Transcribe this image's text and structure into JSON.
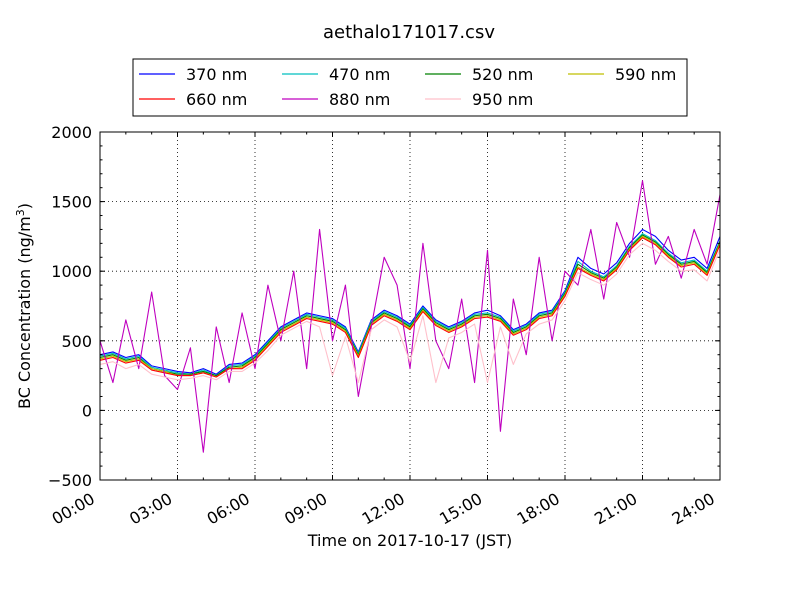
{
  "chart_data": {
    "type": "line",
    "title": "aethalo171017.csv",
    "xlabel": "Time on 2017-10-17 (JST)",
    "ylabel_main": "BC Concentration (ng/m",
    "ylabel_sup": "3",
    "ylabel_end": ")",
    "xlim": [
      "00:00",
      "24:00"
    ],
    "ylim": [
      -500,
      2000
    ],
    "grid": true,
    "legend_position": "top",
    "x_ticks": [
      "00:00",
      "03:00",
      "06:00",
      "09:00",
      "12:00",
      "15:00",
      "18:00",
      "21:00",
      "24:00"
    ],
    "y_ticks": [
      "2000",
      "1500",
      "1000",
      "500",
      "0",
      "−500"
    ],
    "x": [
      "00:00",
      "00:30",
      "01:00",
      "01:30",
      "02:00",
      "02:30",
      "03:00",
      "03:30",
      "04:00",
      "04:30",
      "05:00",
      "05:30",
      "06:00",
      "06:30",
      "07:00",
      "07:30",
      "08:00",
      "08:30",
      "09:00",
      "09:30",
      "10:00",
      "10:30",
      "11:00",
      "11:30",
      "12:00",
      "12:30",
      "13:00",
      "13:30",
      "14:00",
      "14:30",
      "15:00",
      "15:30",
      "16:00",
      "16:30",
      "17:00",
      "17:30",
      "18:00",
      "18:30",
      "19:00",
      "19:30",
      "20:00",
      "20:30",
      "21:00",
      "21:30",
      "22:00",
      "22:30",
      "23:00",
      "23:30",
      "24:00"
    ],
    "series": [
      {
        "name": "370 nm",
        "color": "#0000ff",
        "values": [
          400,
          420,
          380,
          400,
          320,
          300,
          280,
          270,
          300,
          260,
          330,
          340,
          400,
          500,
          600,
          650,
          700,
          680,
          660,
          600,
          420,
          650,
          720,
          680,
          620,
          750,
          650,
          600,
          640,
          700,
          720,
          680,
          580,
          620,
          700,
          720,
          860,
          1100,
          1020,
          980,
          1060,
          1200,
          1300,
          1250,
          1150,
          1080,
          1100,
          1020,
          1250
        ]
      },
      {
        "name": "470 nm",
        "color": "#00bfbf",
        "values": [
          390,
          410,
          370,
          390,
          310,
          290,
          270,
          260,
          290,
          250,
          320,
          330,
          390,
          490,
          590,
          640,
          690,
          670,
          650,
          590,
          410,
          640,
          710,
          670,
          610,
          740,
          640,
          590,
          630,
          690,
          700,
          670,
          570,
          610,
          690,
          710,
          850,
          1070,
          1000,
          960,
          1040,
          1180,
          1270,
          1220,
          1130,
          1060,
          1080,
          1000,
          1220
        ]
      },
      {
        "name": "520 nm",
        "color": "#008000",
        "values": [
          380,
          400,
          360,
          380,
          300,
          280,
          260,
          260,
          280,
          250,
          310,
          320,
          380,
          480,
          580,
          630,
          680,
          660,
          640,
          580,
          400,
          630,
          700,
          660,
          600,
          730,
          630,
          580,
          620,
          680,
          690,
          660,
          560,
          600,
          680,
          700,
          840,
          1050,
          990,
          950,
          1030,
          1170,
          1260,
          1210,
          1120,
          1050,
          1070,
          990,
          1210
        ]
      },
      {
        "name": "590 nm",
        "color": "#bfbf00",
        "values": [
          370,
          390,
          350,
          370,
          300,
          280,
          250,
          250,
          270,
          240,
          300,
          310,
          370,
          470,
          570,
          620,
          670,
          650,
          630,
          570,
          390,
          620,
          690,
          650,
          590,
          720,
          620,
          570,
          610,
          670,
          680,
          650,
          550,
          590,
          670,
          690,
          830,
          1030,
          980,
          940,
          1020,
          1160,
          1250,
          1200,
          1110,
          1040,
          1060,
          980,
          1200
        ]
      },
      {
        "name": "660 nm",
        "color": "#ff0000",
        "values": [
          360,
          380,
          340,
          360,
          290,
          270,
          250,
          250,
          270,
          240,
          300,
          300,
          360,
          460,
          560,
          610,
          660,
          640,
          620,
          560,
          380,
          610,
          680,
          640,
          580,
          710,
          610,
          560,
          600,
          660,
          670,
          640,
          540,
          580,
          660,
          680,
          820,
          1020,
          970,
          930,
          1010,
          1150,
          1240,
          1190,
          1100,
          1030,
          1050,
          970,
          1190
        ]
      },
      {
        "name": "880 nm",
        "color": "#bf00bf",
        "values": [
          500,
          200,
          650,
          300,
          850,
          250,
          150,
          450,
          -300,
          600,
          200,
          700,
          300,
          900,
          500,
          1000,
          300,
          1300,
          500,
          900,
          100,
          600,
          1100,
          900,
          300,
          1200,
          500,
          300,
          800,
          200,
          1150,
          -150,
          800,
          400,
          1100,
          500,
          1000,
          900,
          1300,
          800,
          1350,
          1100,
          1650,
          1050,
          1250,
          950,
          1300,
          1050,
          1550
        ]
      },
      {
        "name": "950 nm",
        "color": "#ffc0cb",
        "values": [
          330,
          350,
          300,
          330,
          260,
          240,
          220,
          230,
          250,
          220,
          280,
          280,
          340,
          430,
          540,
          590,
          640,
          600,
          250,
          530,
          200,
          580,
          650,
          600,
          350,
          680,
          200,
          520,
          560,
          620,
          200,
          600,
          330,
          550,
          620,
          650,
          790,
          990,
          940,
          900,
          980,
          1120,
          1200,
          1150,
          1070,
          1000,
          1010,
          930,
          1160
        ]
      }
    ]
  }
}
